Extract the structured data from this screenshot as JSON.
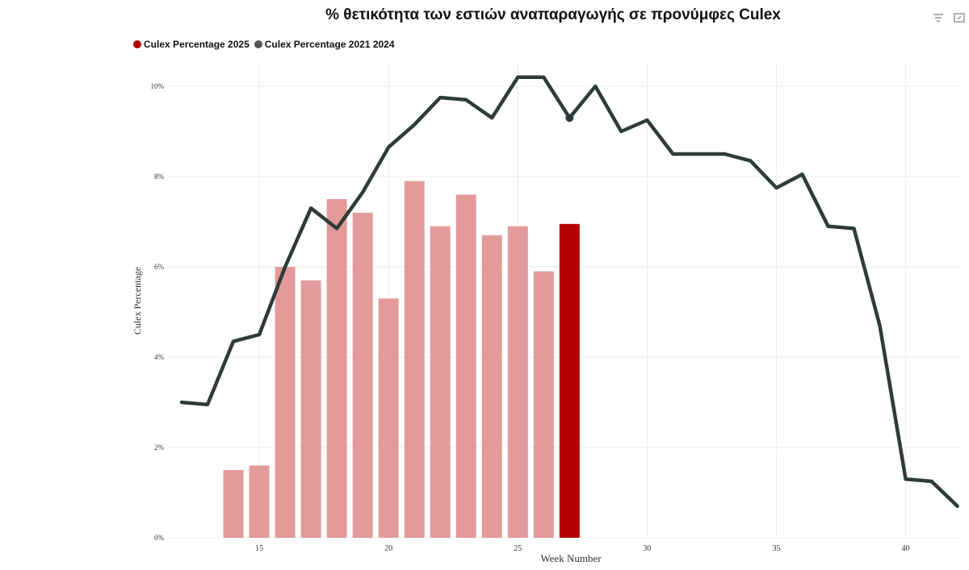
{
  "chart_data": {
    "type": "bar",
    "title": "% θετικότητα των εστιών αναπαραγωγής σε προνύμφες Culex",
    "xlabel": "Week Number",
    "ylabel": "Culex Percentage",
    "xlim": [
      11.5,
      42.2
    ],
    "ylim": [
      0,
      10.5
    ],
    "x_ticks": [
      15,
      20,
      25,
      30,
      35,
      40
    ],
    "y_ticks": [
      0,
      2,
      4,
      6,
      8,
      10
    ],
    "y_tick_labels": [
      "0%",
      "2%",
      "4%",
      "6%",
      "8%",
      "10%"
    ],
    "grid": true,
    "legend_position": "top-left",
    "series": [
      {
        "name": "Culex Percentage 2025",
        "kind": "bar",
        "color": "#b30000",
        "faded_color": "#e39a9a",
        "highlight_x": 27,
        "x": [
          14,
          15,
          16,
          17,
          18,
          19,
          20,
          21,
          22,
          23,
          24,
          25,
          26,
          27
        ],
        "values": [
          1.5,
          1.6,
          6.0,
          5.7,
          7.5,
          7.2,
          5.3,
          7.9,
          6.9,
          7.6,
          6.7,
          6.9,
          5.9,
          6.95
        ]
      },
      {
        "name": "Culex Percentage 2021  2024",
        "kind": "line",
        "color": "#2f3b3b",
        "marker_x": 27,
        "x": [
          12,
          13,
          14,
          15,
          16,
          17,
          18,
          19,
          20,
          21,
          22,
          23,
          24,
          25,
          26,
          27,
          28,
          29,
          30,
          31,
          32,
          33,
          34,
          35,
          36,
          37,
          38,
          39,
          40,
          41,
          42
        ],
        "values": [
          3.0,
          2.95,
          4.35,
          4.5,
          6.0,
          7.3,
          6.85,
          7.65,
          8.65,
          9.15,
          9.75,
          9.7,
          9.3,
          10.2,
          10.2,
          9.3,
          10.0,
          9.0,
          9.25,
          8.5,
          8.5,
          8.5,
          8.35,
          7.75,
          8.05,
          6.9,
          6.85,
          4.7,
          1.3,
          1.25,
          0.7
        ]
      }
    ]
  },
  "toolbar": {
    "icons": [
      "filter-icon",
      "expand-icon"
    ]
  }
}
